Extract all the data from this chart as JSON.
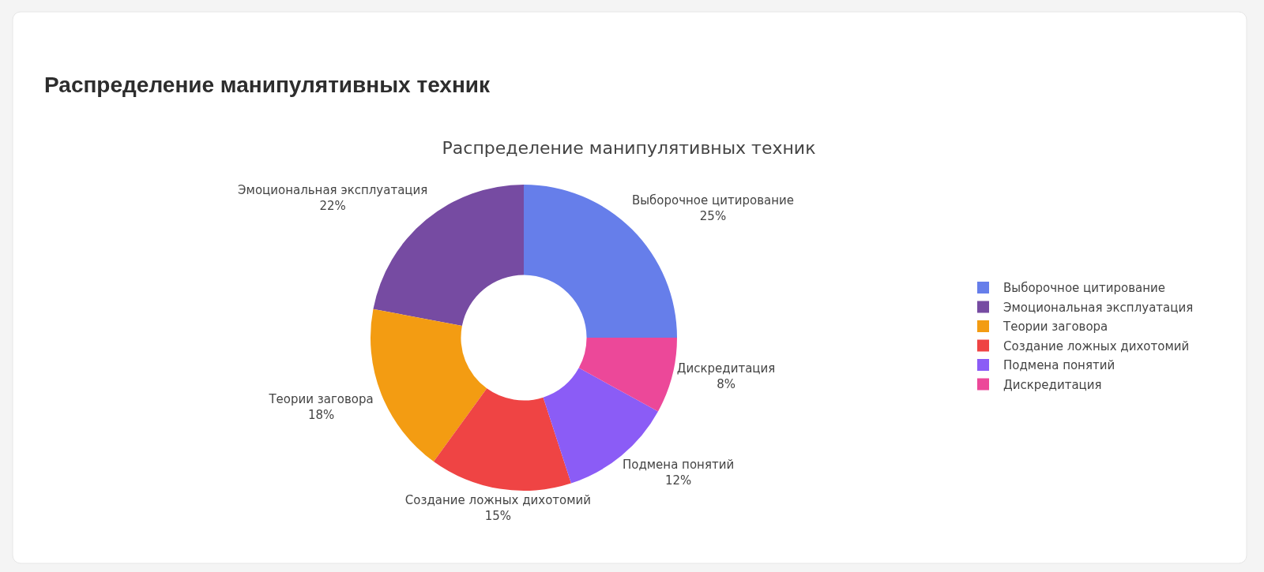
{
  "chart_data": {
    "type": "donut",
    "title": "Распределение манипулятивных техник",
    "subtitle": "Распределение манипулятивных техник",
    "categories": [
      "Выборочное цитирование",
      "Эмоциональная эксплуатация",
      "Теории заговора",
      "Создание ложных дихотомий",
      "Подмена понятий",
      "Дискредитация"
    ],
    "values": [
      25,
      22,
      18,
      15,
      12,
      8
    ],
    "value_labels": [
      "25%",
      "22%",
      "18%",
      "15%",
      "12%",
      "8%"
    ],
    "colors": [
      "#667eea",
      "#764ba2",
      "#f39c12",
      "#ef4444",
      "#8b5cf6",
      "#ec4899"
    ],
    "legend": "right"
  }
}
